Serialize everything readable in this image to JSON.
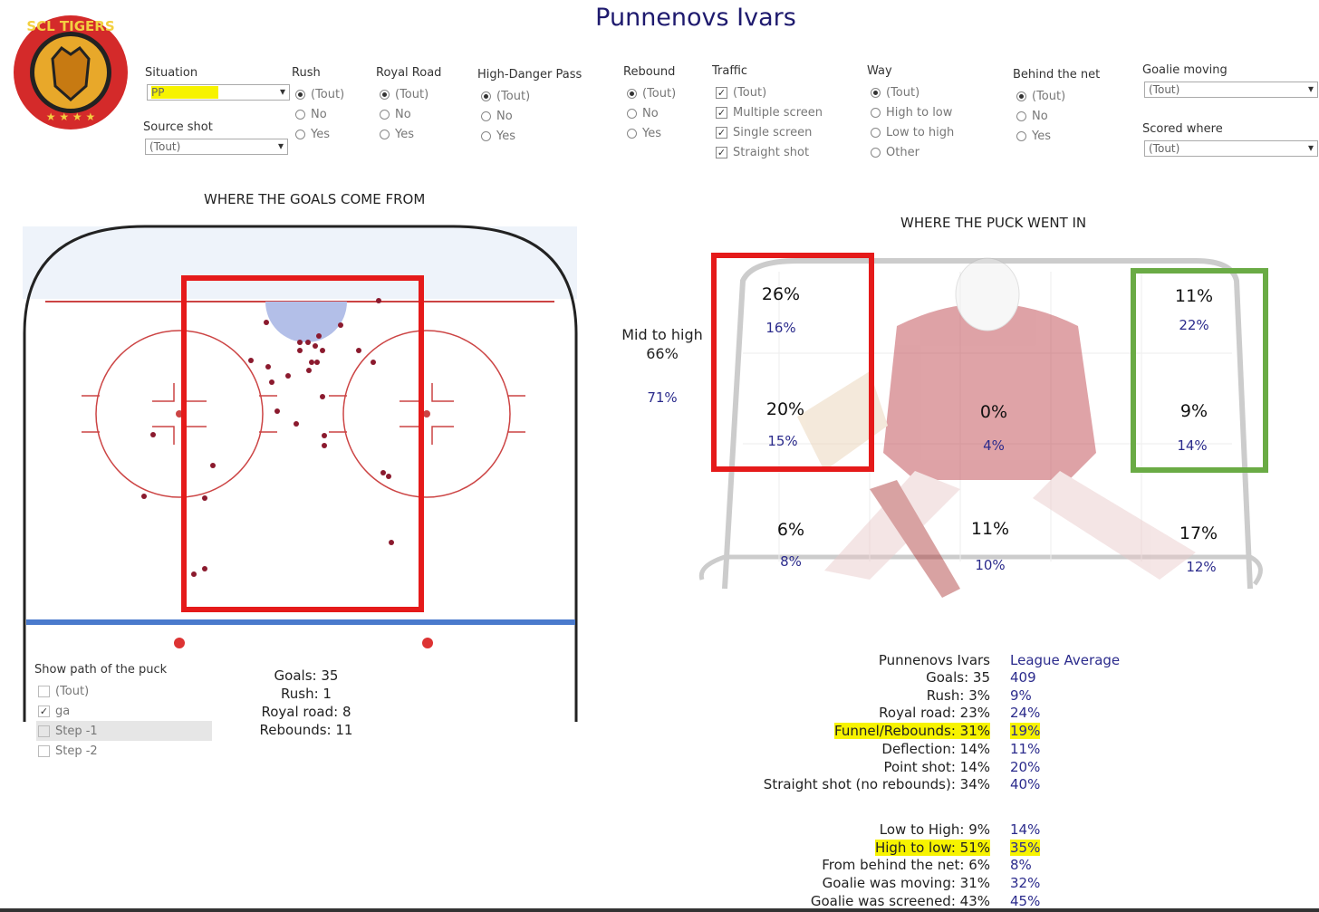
{
  "header": {
    "title": "Punnenovs Ivars",
    "logo": "SCL TIGERS"
  },
  "filters": [
    {
      "label": "Situation",
      "kind": "dropdown",
      "options": [
        "PP"
      ]
    },
    {
      "label": "Source shot",
      "kind": "dropdown",
      "options": [
        "(Tout)"
      ]
    },
    {
      "label": "Rush",
      "kind": "radio",
      "options": [
        "(Tout)",
        "No",
        "Yes"
      ]
    },
    {
      "label": "Royal Road",
      "kind": "radio",
      "options": [
        "(Tout)",
        "No",
        "Yes"
      ]
    },
    {
      "label": "High-Danger Pass",
      "kind": "radio",
      "options": [
        "(Tout)",
        "No",
        "Yes"
      ]
    },
    {
      "label": "Rebound",
      "kind": "radio",
      "options": [
        "(Tout)",
        "No",
        "Yes"
      ]
    },
    {
      "label": "Traffic",
      "kind": "checkbox",
      "options": [
        "(Tout)",
        "Multiple screen",
        "Single screen",
        "Straight shot"
      ]
    },
    {
      "label": "Way",
      "kind": "radio",
      "options": [
        "(Tout)",
        "High to low",
        "Low to high",
        "Other"
      ]
    },
    {
      "label": "Behind the net",
      "kind": "radio",
      "options": [
        "(Tout)",
        "No",
        "Yes"
      ]
    },
    {
      "label": "Goalie moving",
      "kind": "dropdown",
      "options": [
        "(Tout)"
      ]
    },
    {
      "label": "Scored where",
      "kind": "dropdown",
      "options": [
        "(Tout)"
      ]
    }
  ],
  "rink": {
    "title": "WHERE THE GOALS COME FROM",
    "path_filter": {
      "label": "Show path of the puck",
      "options": [
        "(Tout)",
        "ga",
        "Step -1",
        "Step -2"
      ]
    },
    "summary": [
      "Goals: 35",
      "Rush: 1",
      "Royal road: 8",
      "Rebounds: 11"
    ]
  },
  "net": {
    "title": "WHERE THE PUCK WENT IN",
    "side_label": "Mid to high",
    "side_goalie": "66%",
    "side_league": "71%",
    "zones": [
      {
        "goalie": "26%",
        "league": "16%"
      },
      {
        "goalie": "11%",
        "league": "22%"
      },
      {
        "goalie": "20%",
        "league": "15%"
      },
      {
        "goalie": "0%",
        "league": "4%"
      },
      {
        "goalie": "9%",
        "league": "14%"
      },
      {
        "goalie": "6%",
        "league": "8%"
      },
      {
        "goalie": "11%",
        "league": "10%"
      },
      {
        "goalie": "17%",
        "league": "12%"
      }
    ]
  },
  "comparison": {
    "player": "Punnenovs Ivars",
    "league": "League Average",
    "rows": [
      {
        "player": "Goals: 35",
        "league": "409"
      },
      {
        "player": "Rush: 3%",
        "league": "9%"
      },
      {
        "player": "Royal road: 23%",
        "league": "24%"
      },
      {
        "player": "Funnel/Rebounds: 31%",
        "league": "19%"
      },
      {
        "player": "Deflection: 14%",
        "league": "11%"
      },
      {
        "player": "Point shot: 14%",
        "league": "20%"
      },
      {
        "player": "Straight shot (no rebounds): 34%",
        "league": "40%"
      },
      {
        "player": "Low to High: 9%",
        "league": "14%"
      },
      {
        "player": "High to low: 51%",
        "league": "35%"
      },
      {
        "player": "From behind the net: 6%",
        "league": "8%"
      },
      {
        "player": "Goalie was moving: 31%",
        "league": "32%"
      },
      {
        "player": "Goalie was screened: 43%",
        "league": "45%"
      }
    ]
  }
}
